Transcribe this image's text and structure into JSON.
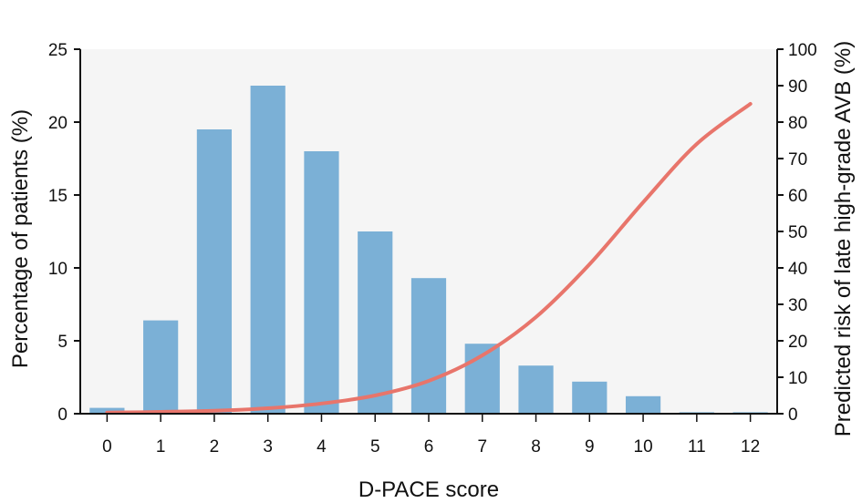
{
  "chart_data": {
    "type": "bar",
    "xlabel": "D-PACE score",
    "ylabel": "Percentage of patients (%)",
    "y2label": "Predicted risk of late high-grade AVB (%)",
    "categories": [
      "0",
      "1",
      "2",
      "3",
      "4",
      "5",
      "6",
      "7",
      "8",
      "9",
      "10",
      "11",
      "12"
    ],
    "ylim": [
      0,
      25
    ],
    "y2lim": [
      0,
      100
    ],
    "yticks": [
      "0",
      "5",
      "10",
      "15",
      "20",
      "25"
    ],
    "y2ticks": [
      "0",
      "10",
      "20",
      "30",
      "40",
      "50",
      "60",
      "70",
      "80",
      "90",
      "100"
    ],
    "grid": false,
    "series": [
      {
        "type": "bar",
        "axis": "left",
        "values": [
          0.4,
          6.4,
          19.5,
          22.5,
          18.0,
          12.5,
          9.3,
          4.8,
          3.3,
          2.2,
          1.2,
          0.1,
          0.1
        ]
      },
      {
        "type": "line",
        "axis": "right",
        "x": [
          0,
          1,
          2,
          3,
          4,
          5,
          6,
          7,
          8,
          9,
          10,
          11,
          12
        ],
        "values": [
          0.3,
          0.5,
          0.8,
          1.5,
          2.8,
          5.0,
          9.0,
          16.0,
          26.5,
          41.0,
          58.0,
          74.0,
          85.0
        ]
      }
    ],
    "colors": {
      "bars": "#7bb0d6",
      "line": "#e8756b",
      "plot_background": "#f5f5f5",
      "axis": "#111111"
    }
  }
}
